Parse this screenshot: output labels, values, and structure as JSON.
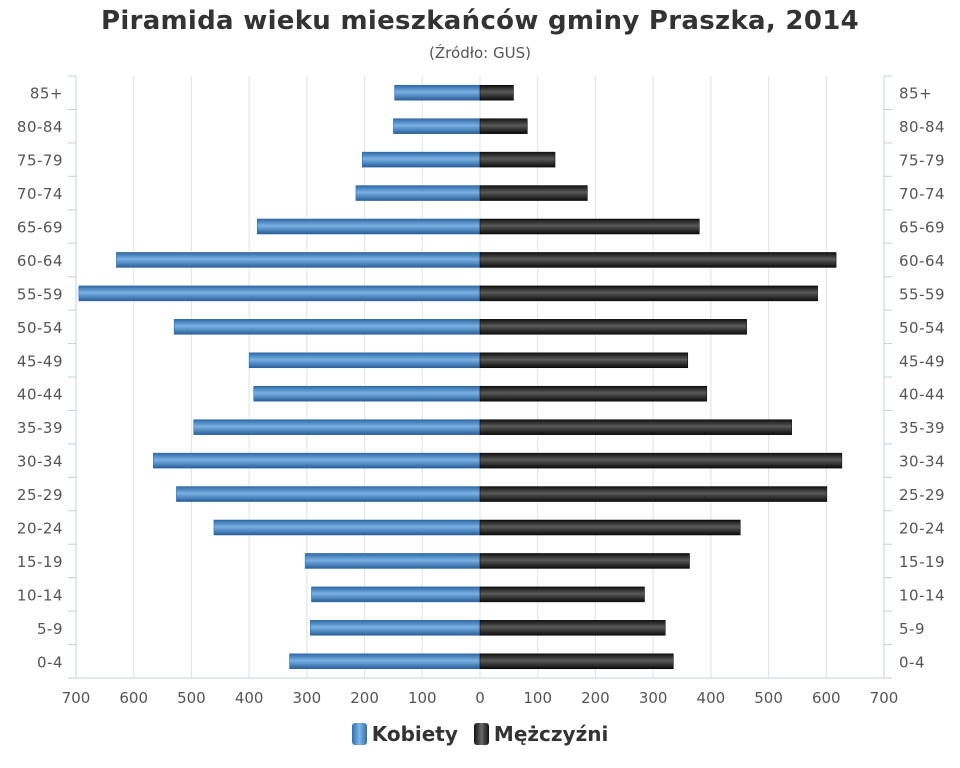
{
  "title": "Piramida wieku mieszkańców gminy Praszka, 2014",
  "subtitle": "(Źródło: GUS)",
  "chart_data": {
    "type": "bar",
    "orientation": "horizontal-pyramid",
    "categories": [
      "85+",
      "80-84",
      "75-79",
      "70-74",
      "65-69",
      "60-64",
      "55-59",
      "50-54",
      "45-49",
      "40-44",
      "35-39",
      "30-34",
      "25-29",
      "20-24",
      "15-19",
      "10-14",
      "5-9",
      "0-4"
    ],
    "series": [
      {
        "name": "Kobiety",
        "color": "#3a7bc0",
        "side": "left",
        "values": [
          148,
          150,
          204,
          215,
          386,
          630,
          695,
          530,
          400,
          392,
          496,
          566,
          526,
          461,
          303,
          292,
          294,
          330
        ]
      },
      {
        "name": "Mężczyźni",
        "color": "#1a1a1a",
        "side": "right",
        "values": [
          58,
          82,
          130,
          186,
          380,
          617,
          585,
          462,
          360,
          393,
          540,
          627,
          601,
          451,
          363,
          285,
          321,
          335
        ]
      }
    ],
    "xlim": [
      -700,
      700
    ],
    "x_tick_labels": [
      "700",
      "600",
      "500",
      "400",
      "300",
      "200",
      "100",
      "0",
      "100",
      "200",
      "300",
      "400",
      "500",
      "600",
      "700"
    ],
    "grid": true,
    "legend_position": "bottom"
  }
}
